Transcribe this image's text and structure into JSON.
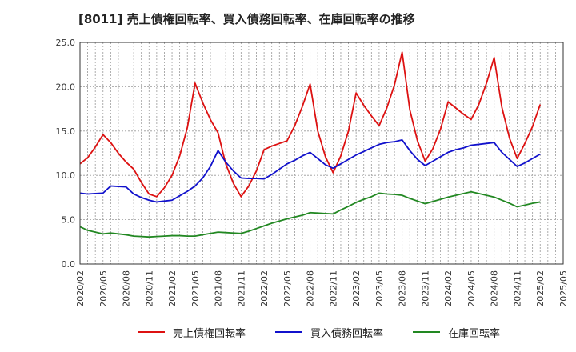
{
  "chart_data": {
    "type": "line",
    "title": "[8011]  売上債権回転率、買入債務回転率、在庫回転率の推移",
    "xlabel": "",
    "ylabel": "",
    "ylim": [
      0,
      25
    ],
    "yticks": [
      "0.0",
      "5.0",
      "10.0",
      "15.0",
      "20.0",
      "25.0"
    ],
    "x_tick_labels": [
      "2020/02",
      "2020/05",
      "2020/08",
      "2020/11",
      "2021/02",
      "2021/05",
      "2021/08",
      "2021/11",
      "2022/02",
      "2022/05",
      "2022/08",
      "2022/11",
      "2023/02",
      "2023/05",
      "2023/08",
      "2023/11",
      "2024/02",
      "2024/05",
      "2024/08",
      "2024/11",
      "2025/02",
      "2025/05"
    ],
    "grid": true,
    "legend_position": "bottom",
    "x_start": "2020/02",
    "series": [
      {
        "name": "売上債権回転率",
        "color": "#dd1111",
        "values": [
          11.3,
          12.0,
          13.2,
          14.6,
          13.7,
          12.5,
          11.5,
          10.7,
          9.2,
          7.9,
          7.6,
          8.6,
          10.0,
          12.2,
          15.4,
          20.4,
          18.2,
          16.3,
          14.8,
          11.3,
          9.1,
          7.6,
          8.8,
          10.5,
          12.9,
          13.3,
          13.6,
          13.9,
          15.6,
          17.8,
          20.3,
          15.0,
          12.1,
          10.3,
          12.2,
          15.0,
          19.3,
          17.9,
          16.7,
          15.6,
          17.6,
          20.2,
          23.9,
          17.4,
          13.9,
          11.6,
          13.0,
          15.2,
          18.3,
          17.6,
          16.9,
          16.3,
          18.0,
          20.4,
          23.3,
          17.7,
          14.2,
          11.9,
          13.6,
          15.5,
          18.0
        ]
      },
      {
        "name": "買入債務回転率",
        "color": "#1111cc",
        "values": [
          8.0,
          7.9,
          7.95,
          8.0,
          8.8,
          8.75,
          8.7,
          7.9,
          7.5,
          7.2,
          7.0,
          7.1,
          7.2,
          7.7,
          8.2,
          8.8,
          9.7,
          11.0,
          12.8,
          11.5,
          10.5,
          9.7,
          9.65,
          9.65,
          9.6,
          10.1,
          10.7,
          11.3,
          11.7,
          12.2,
          12.6,
          11.9,
          11.2,
          10.8,
          11.3,
          11.8,
          12.3,
          12.7,
          13.1,
          13.5,
          13.7,
          13.8,
          14.0,
          12.8,
          11.8,
          11.1,
          11.6,
          12.1,
          12.6,
          12.9,
          13.1,
          13.4,
          13.5,
          13.6,
          13.7,
          12.6,
          11.8,
          11.0,
          11.4,
          11.9,
          12.4
        ]
      },
      {
        "name": "在庫回転率",
        "color": "#228822",
        "values": [
          4.2,
          3.8,
          3.6,
          3.4,
          3.5,
          3.4,
          3.3,
          3.15,
          3.1,
          3.05,
          3.1,
          3.15,
          3.2,
          3.2,
          3.15,
          3.15,
          3.3,
          3.45,
          3.6,
          3.55,
          3.5,
          3.45,
          3.7,
          4.0,
          4.3,
          4.6,
          4.85,
          5.1,
          5.3,
          5.5,
          5.8,
          5.75,
          5.7,
          5.65,
          6.1,
          6.5,
          6.95,
          7.3,
          7.6,
          8.0,
          7.9,
          7.85,
          7.75,
          7.4,
          7.1,
          6.8,
          7.05,
          7.3,
          7.55,
          7.75,
          7.95,
          8.15,
          7.95,
          7.75,
          7.55,
          7.2,
          6.85,
          6.45,
          6.65,
          6.85,
          7.0
        ]
      }
    ]
  }
}
